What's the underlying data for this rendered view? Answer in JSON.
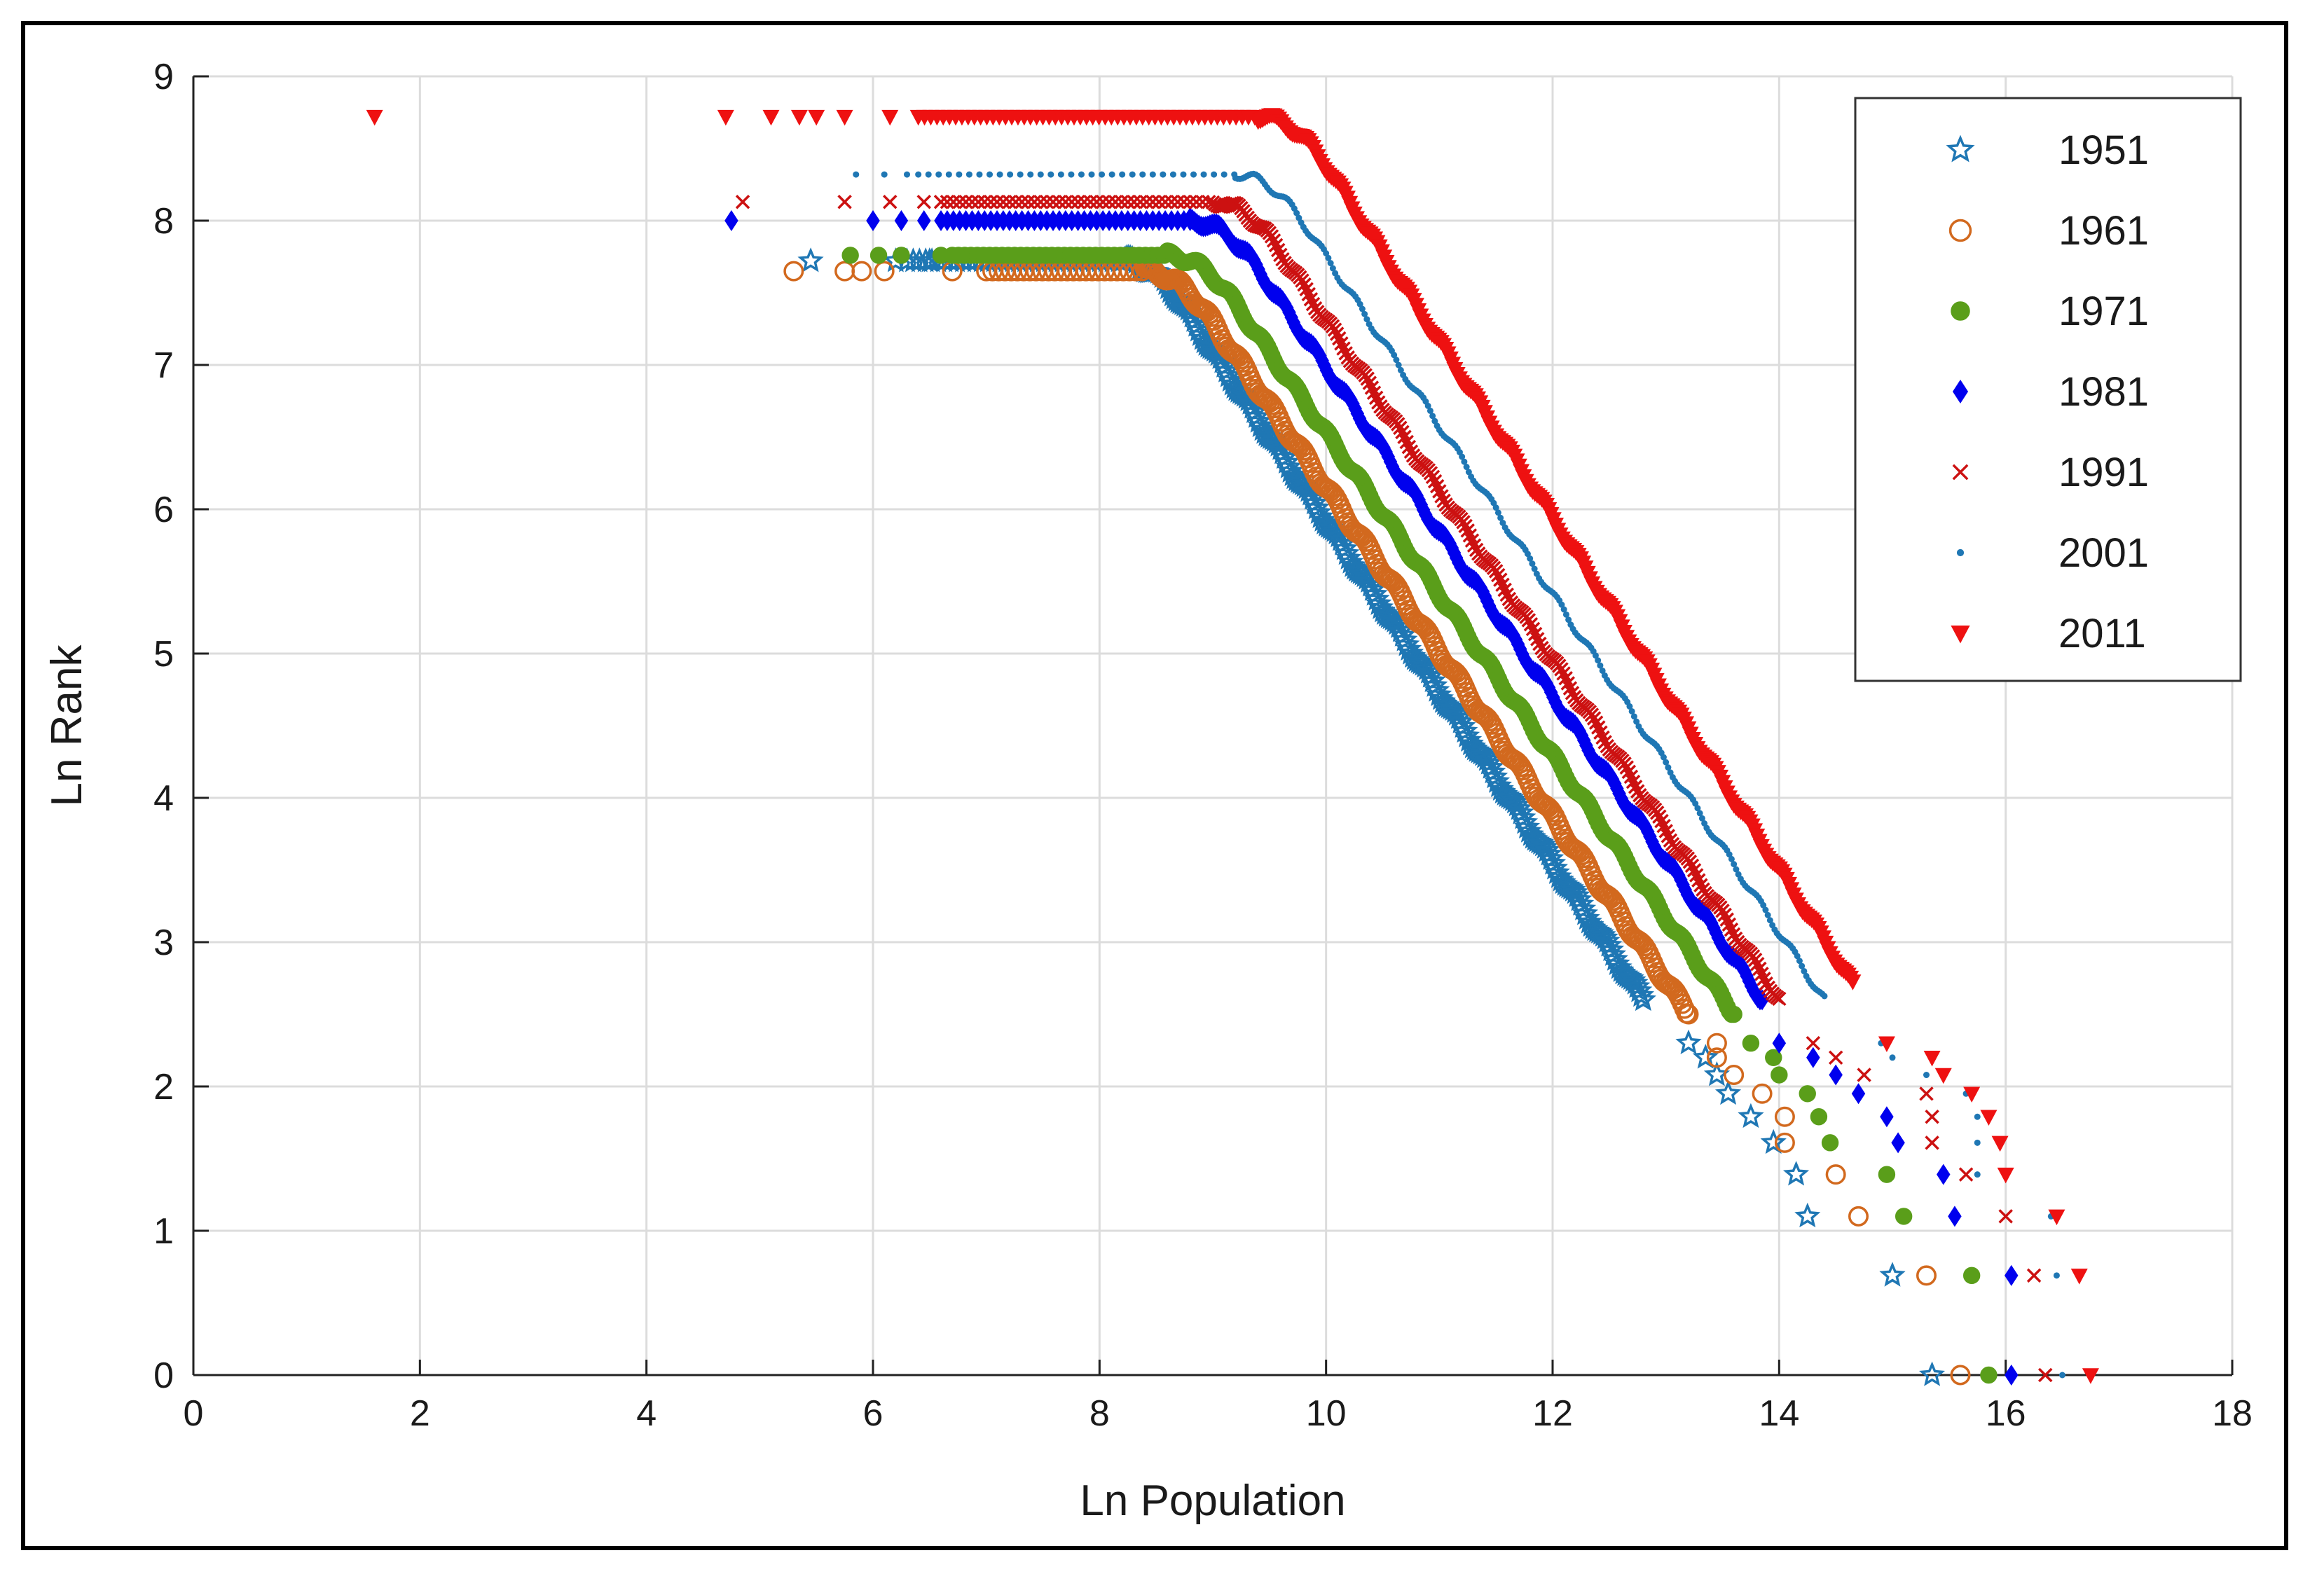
{
  "chart_data": {
    "type": "scatter",
    "title": "",
    "xlabel": "Ln Population",
    "ylabel": "Ln Rank",
    "xlim": [
      0,
      18
    ],
    "ylim": [
      0,
      9
    ],
    "xticks": [
      0,
      2,
      4,
      6,
      8,
      10,
      12,
      14,
      16,
      18
    ],
    "yticks": [
      0,
      1,
      2,
      3,
      4,
      5,
      6,
      7,
      8,
      9
    ],
    "grid": true,
    "legend_position": "top-right",
    "series": [
      {
        "name": "1951",
        "marker": "star",
        "color": "#1f77b4",
        "x_tail_high": [
          15.35,
          15.0,
          14.25,
          14.15,
          13.95,
          13.75,
          13.55,
          13.45,
          13.35,
          13.2
        ],
        "y_tail_high": [
          0.0,
          0.69,
          1.1,
          1.39,
          1.61,
          1.79,
          1.95,
          2.08,
          2.2,
          2.3
        ],
        "x_low": [
          5.45,
          6.2,
          6.5
        ],
        "y_low": [
          7.72,
          7.72,
          7.72
        ],
        "plateau_y": 7.72,
        "plateau_x": [
          6.3,
          8.2
        ],
        "knee_x": 8.2,
        "knee_end": [
          12.8,
          2.6
        ]
      },
      {
        "name": "1961",
        "marker": "circle-open",
        "color": "#d2691e",
        "x_tail_high": [
          15.6,
          15.3,
          14.7,
          14.5,
          14.05,
          14.05,
          13.85,
          13.6,
          13.45,
          13.45
        ],
        "y_tail_high": [
          0.0,
          0.69,
          1.1,
          1.39,
          1.61,
          1.79,
          1.95,
          2.08,
          2.2,
          2.3
        ],
        "x_low": [
          5.3,
          5.75,
          5.9,
          6.1,
          6.7
        ],
        "y_low": [
          7.65,
          7.65,
          7.65,
          7.65,
          7.65
        ],
        "plateau_y": 7.65,
        "plateau_x": [
          7.0,
          8.4
        ],
        "knee_x": 8.4,
        "knee_end": [
          13.2,
          2.5
        ]
      },
      {
        "name": "1971",
        "marker": "circle-filled",
        "color": "#5a9e1a",
        "x_tail_high": [
          15.85,
          15.7,
          15.1,
          14.95,
          14.45,
          14.35,
          14.25,
          14.0,
          13.95,
          13.75
        ],
        "y_tail_high": [
          0.0,
          0.69,
          1.1,
          1.39,
          1.61,
          1.79,
          1.95,
          2.08,
          2.2,
          2.3
        ],
        "x_low": [
          5.8,
          6.05,
          6.25,
          6.6
        ],
        "y_low": [
          7.76,
          7.76,
          7.76,
          7.76
        ],
        "plateau_y": 7.76,
        "plateau_x": [
          6.7,
          8.6
        ],
        "knee_x": 8.6,
        "knee_end": [
          13.6,
          2.5
        ]
      },
      {
        "name": "1981",
        "marker": "diamond",
        "color": "#0000ee",
        "x_tail_high": [
          16.05,
          16.05,
          15.55,
          15.45,
          15.05,
          14.95,
          14.7,
          14.5,
          14.3,
          14.0
        ],
        "y_tail_high": [
          0.0,
          0.69,
          1.1,
          1.39,
          1.61,
          1.79,
          1.95,
          2.08,
          2.2,
          2.3
        ],
        "x_low": [
          4.75,
          6.0,
          6.25,
          6.45
        ],
        "y_low": [
          8.0,
          8.0,
          8.0,
          8.0
        ],
        "plateau_y": 8.0,
        "plateau_x": [
          6.6,
          8.8
        ],
        "knee_x": 8.8,
        "knee_end": [
          13.85,
          2.6
        ]
      },
      {
        "name": "1991",
        "marker": "cross",
        "color": "#cc1111",
        "x_tail_high": [
          16.35,
          16.25,
          16.0,
          15.65,
          15.35,
          15.35,
          15.3,
          14.75,
          14.5,
          14.3
        ],
        "y_tail_high": [
          0.0,
          0.69,
          1.1,
          1.39,
          1.61,
          1.79,
          1.95,
          2.08,
          2.2,
          2.3
        ],
        "x_low": [
          4.85,
          5.75,
          6.15,
          6.45
        ],
        "y_low": [
          8.13,
          8.13,
          8.13,
          8.13
        ],
        "plateau_y": 8.13,
        "plateau_x": [
          6.6,
          9.0
        ],
        "knee_x": 9.0,
        "knee_end": [
          14.0,
          2.6
        ]
      },
      {
        "name": "2001",
        "marker": "dot",
        "color": "#1f77b4",
        "x_tail_high": [
          16.5,
          16.45,
          16.4,
          15.75,
          15.75,
          15.75,
          15.65,
          15.3,
          15.0,
          14.9
        ],
        "y_tail_high": [
          0.0,
          0.69,
          1.1,
          1.39,
          1.61,
          1.79,
          1.95,
          2.08,
          2.2,
          2.3
        ],
        "x_low": [
          5.85,
          6.1,
          6.3
        ],
        "y_low": [
          8.32,
          8.32,
          8.32
        ],
        "plateau_y": 8.32,
        "plateau_x": [
          6.4,
          9.2
        ],
        "knee_x": 9.2,
        "knee_end": [
          14.4,
          2.6
        ]
      },
      {
        "name": "2011",
        "marker": "triangle-down",
        "color": "#ee1111",
        "x_tail_high": [
          16.75,
          16.65,
          16.45,
          16.0,
          15.95,
          15.85,
          15.7,
          15.45,
          15.35,
          14.95
        ],
        "y_tail_high": [
          0.0,
          0.69,
          1.1,
          1.39,
          1.61,
          1.79,
          1.95,
          2.08,
          2.2,
          2.3
        ],
        "x_low": [
          1.6,
          4.7,
          5.1,
          5.35,
          5.5,
          5.75,
          6.15
        ],
        "y_low": [
          8.72,
          8.72,
          8.72,
          8.72,
          8.72,
          8.72,
          8.72
        ],
        "plateau_y": 8.72,
        "plateau_x": [
          6.4,
          9.4
        ],
        "knee_x": 9.4,
        "knee_end": [
          14.65,
          2.7
        ]
      }
    ]
  }
}
